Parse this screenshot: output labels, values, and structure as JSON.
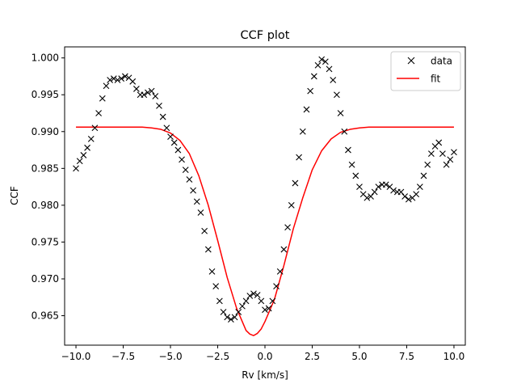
{
  "chart_data": {
    "type": "scatter",
    "title": "CCF plot",
    "xlabel": "Rv [km/s]",
    "ylabel": "CCF",
    "xlim": [
      -10.6,
      10.6
    ],
    "ylim": [
      0.961,
      1.0015
    ],
    "xticks": [
      -10.0,
      -7.5,
      -5.0,
      -2.5,
      0.0,
      2.5,
      5.0,
      7.5,
      10.0
    ],
    "xtick_labels": [
      "−10.0",
      "−7.5",
      "−5.0",
      "−2.5",
      "0.0",
      "2.5",
      "5.0",
      "7.5",
      "10.0"
    ],
    "yticks": [
      0.965,
      0.97,
      0.975,
      0.98,
      0.985,
      0.99,
      0.995,
      1.0
    ],
    "ytick_labels": [
      "0.965",
      "0.970",
      "0.975",
      "0.980",
      "0.985",
      "0.990",
      "0.995",
      "1.000"
    ],
    "grid": false,
    "legend_position": "top-right",
    "series": [
      {
        "name": "data",
        "kind": "markers",
        "marker": "x",
        "color": "#000000",
        "x": [
          -10.0,
          -9.8,
          -9.6,
          -9.4,
          -9.2,
          -9.0,
          -8.8,
          -8.6,
          -8.4,
          -8.2,
          -8.0,
          -7.8,
          -7.6,
          -7.4,
          -7.2,
          -7.0,
          -6.8,
          -6.6,
          -6.4,
          -6.2,
          -6.0,
          -5.8,
          -5.6,
          -5.4,
          -5.2,
          -5.0,
          -4.8,
          -4.6,
          -4.4,
          -4.2,
          -4.0,
          -3.8,
          -3.6,
          -3.4,
          -3.2,
          -3.0,
          -2.8,
          -2.6,
          -2.4,
          -2.2,
          -2.0,
          -1.8,
          -1.6,
          -1.4,
          -1.2,
          -1.0,
          -0.8,
          -0.6,
          -0.4,
          -0.2,
          0.0,
          0.2,
          0.4,
          0.6,
          0.8,
          1.0,
          1.2,
          1.4,
          1.6,
          1.8,
          2.0,
          2.2,
          2.4,
          2.6,
          2.8,
          3.0,
          3.2,
          3.4,
          3.6,
          3.8,
          4.0,
          4.2,
          4.4,
          4.6,
          4.8,
          5.0,
          5.2,
          5.4,
          5.6,
          5.8,
          6.0,
          6.2,
          6.4,
          6.6,
          6.8,
          7.0,
          7.2,
          7.4,
          7.6,
          7.8,
          8.0,
          8.2,
          8.4,
          8.6,
          8.8,
          9.0,
          9.2,
          9.4,
          9.6,
          9.8,
          10.0
        ],
        "y": [
          0.985,
          0.986,
          0.9868,
          0.9878,
          0.989,
          0.9905,
          0.9925,
          0.9945,
          0.9962,
          0.997,
          0.9972,
          0.997,
          0.9972,
          0.9975,
          0.9973,
          0.9968,
          0.9958,
          0.995,
          0.995,
          0.9953,
          0.9955,
          0.9948,
          0.9935,
          0.992,
          0.9905,
          0.9893,
          0.9885,
          0.9875,
          0.9862,
          0.9848,
          0.9835,
          0.982,
          0.9805,
          0.979,
          0.9765,
          0.974,
          0.971,
          0.969,
          0.967,
          0.9655,
          0.9648,
          0.9645,
          0.9648,
          0.9655,
          0.9663,
          0.967,
          0.9677,
          0.968,
          0.9678,
          0.967,
          0.9658,
          0.966,
          0.967,
          0.969,
          0.971,
          0.974,
          0.977,
          0.98,
          0.983,
          0.9865,
          0.99,
          0.993,
          0.9955,
          0.9975,
          0.999,
          0.9998,
          0.9995,
          0.9985,
          0.997,
          0.995,
          0.9925,
          0.99,
          0.9875,
          0.9855,
          0.984,
          0.9825,
          0.9815,
          0.981,
          0.9812,
          0.9818,
          0.9825,
          0.9828,
          0.9828,
          0.9825,
          0.982,
          0.9818,
          0.9818,
          0.9812,
          0.9808,
          0.981,
          0.9815,
          0.9825,
          0.984,
          0.9855,
          0.987,
          0.988,
          0.9885,
          0.987,
          0.9855,
          0.9862,
          0.9872
        ]
      },
      {
        "name": "fit",
        "kind": "line",
        "color": "#ff0000",
        "x": [
          -10.0,
          -9.0,
          -8.0,
          -7.0,
          -6.5,
          -6.0,
          -5.5,
          -5.0,
          -4.5,
          -4.0,
          -3.5,
          -3.0,
          -2.5,
          -2.0,
          -1.5,
          -1.0,
          -0.8,
          -0.6,
          -0.4,
          -0.2,
          0.0,
          0.5,
          1.0,
          1.5,
          2.0,
          2.5,
          3.0,
          3.5,
          4.0,
          4.5,
          5.0,
          5.5,
          6.0,
          7.0,
          8.0,
          9.0,
          10.0
        ],
        "y": [
          0.9906,
          0.9906,
          0.9906,
          0.9906,
          0.9906,
          0.9905,
          0.9903,
          0.9898,
          0.9888,
          0.987,
          0.984,
          0.98,
          0.9752,
          0.9702,
          0.966,
          0.963,
          0.9625,
          0.9623,
          0.9626,
          0.9632,
          0.9642,
          0.9672,
          0.9718,
          0.9768,
          0.981,
          0.9848,
          0.9874,
          0.989,
          0.9899,
          0.9903,
          0.9905,
          0.9906,
          0.9906,
          0.9906,
          0.9906,
          0.9906,
          0.9906
        ]
      }
    ]
  }
}
